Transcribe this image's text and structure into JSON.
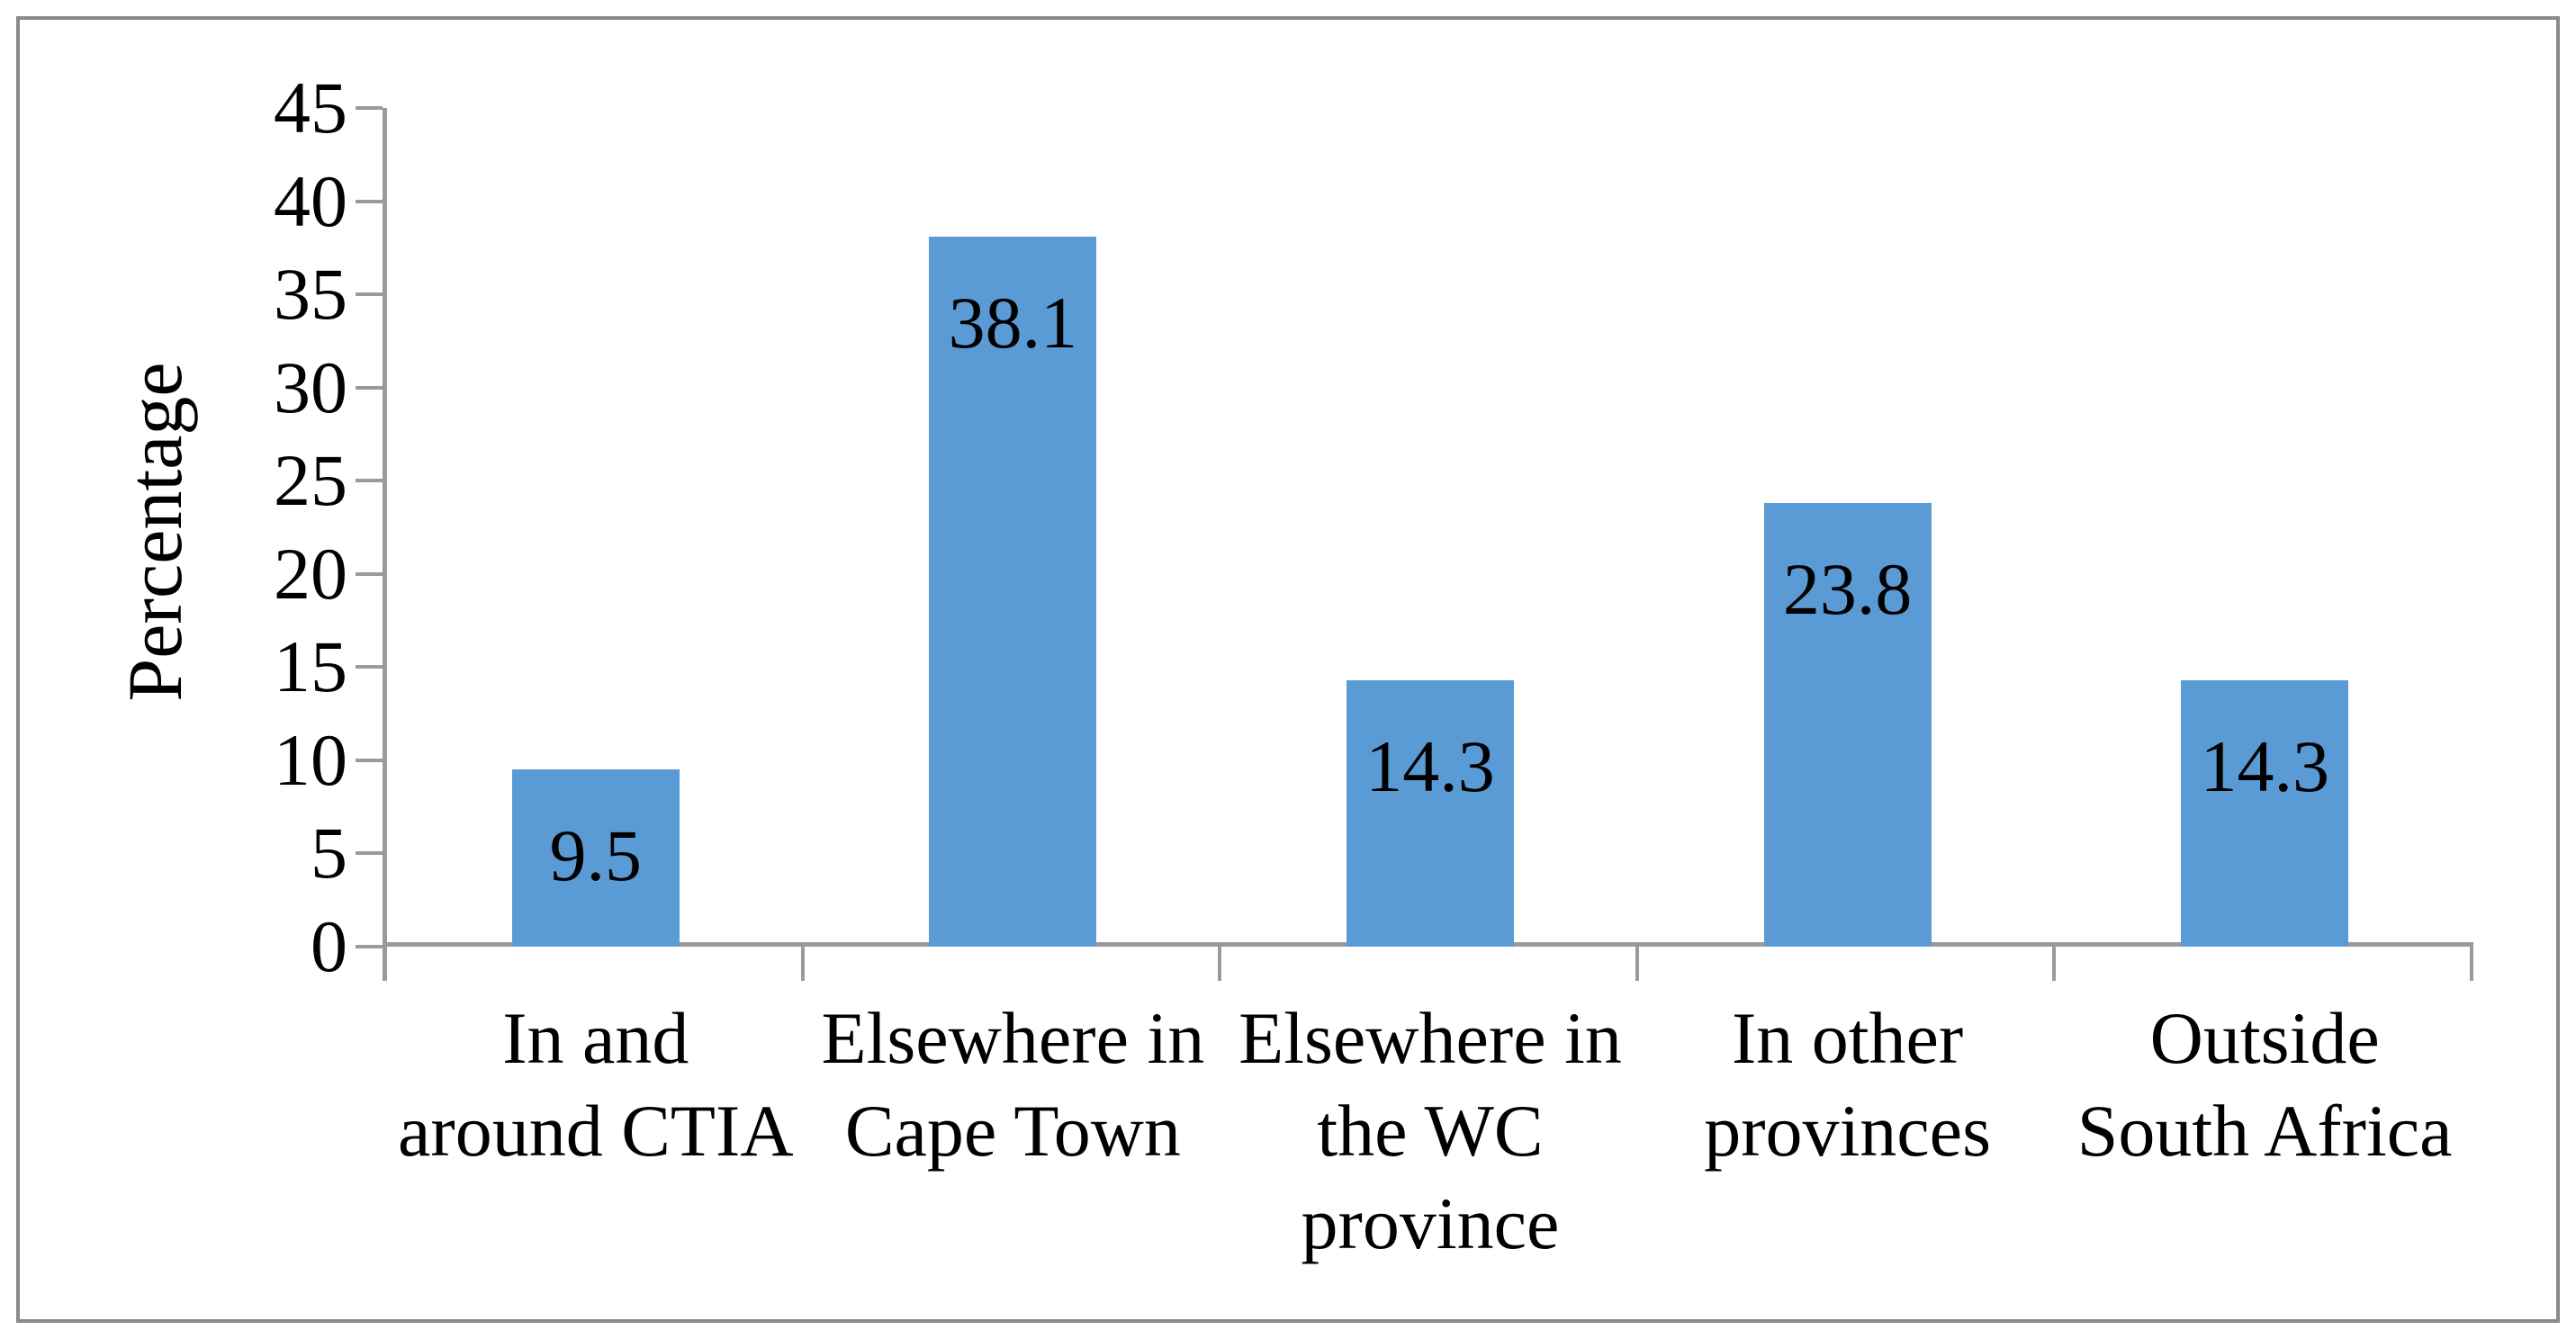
{
  "chart": {
    "y_axis_title": "Percentage"
  },
  "chart_data": {
    "type": "bar",
    "title": "",
    "categories": [
      "In and around CTIA",
      "Elsewhere in Cape Town",
      "Elsewhere in the WC province",
      "In other provinces",
      "Outside South Africa"
    ],
    "category_lines": [
      [
        "In and",
        "around CTIA"
      ],
      [
        "Elsewhere in",
        "Cape Town"
      ],
      [
        "Elsewhere in",
        "the WC",
        "province"
      ],
      [
        "In other",
        "provinces"
      ],
      [
        "Outside",
        "South Africa"
      ]
    ],
    "values": [
      9.5,
      38.1,
      14.3,
      23.8,
      14.3
    ],
    "data_labels": [
      "9.5",
      "38.1",
      "14.3",
      "23.8",
      "14.3"
    ],
    "xlabel": "",
    "ylabel": "Percentage",
    "ylim": [
      0,
      45
    ],
    "ytick_step": 5,
    "yticks": [
      45,
      40,
      35,
      30,
      25,
      20,
      15,
      10,
      5,
      0
    ],
    "grid": false,
    "legend": false,
    "colors": {
      "bar": "#5B9BD5",
      "axis": "#9A9A9A",
      "frame_border": "#8A8A8A",
      "text": "#000000"
    }
  }
}
